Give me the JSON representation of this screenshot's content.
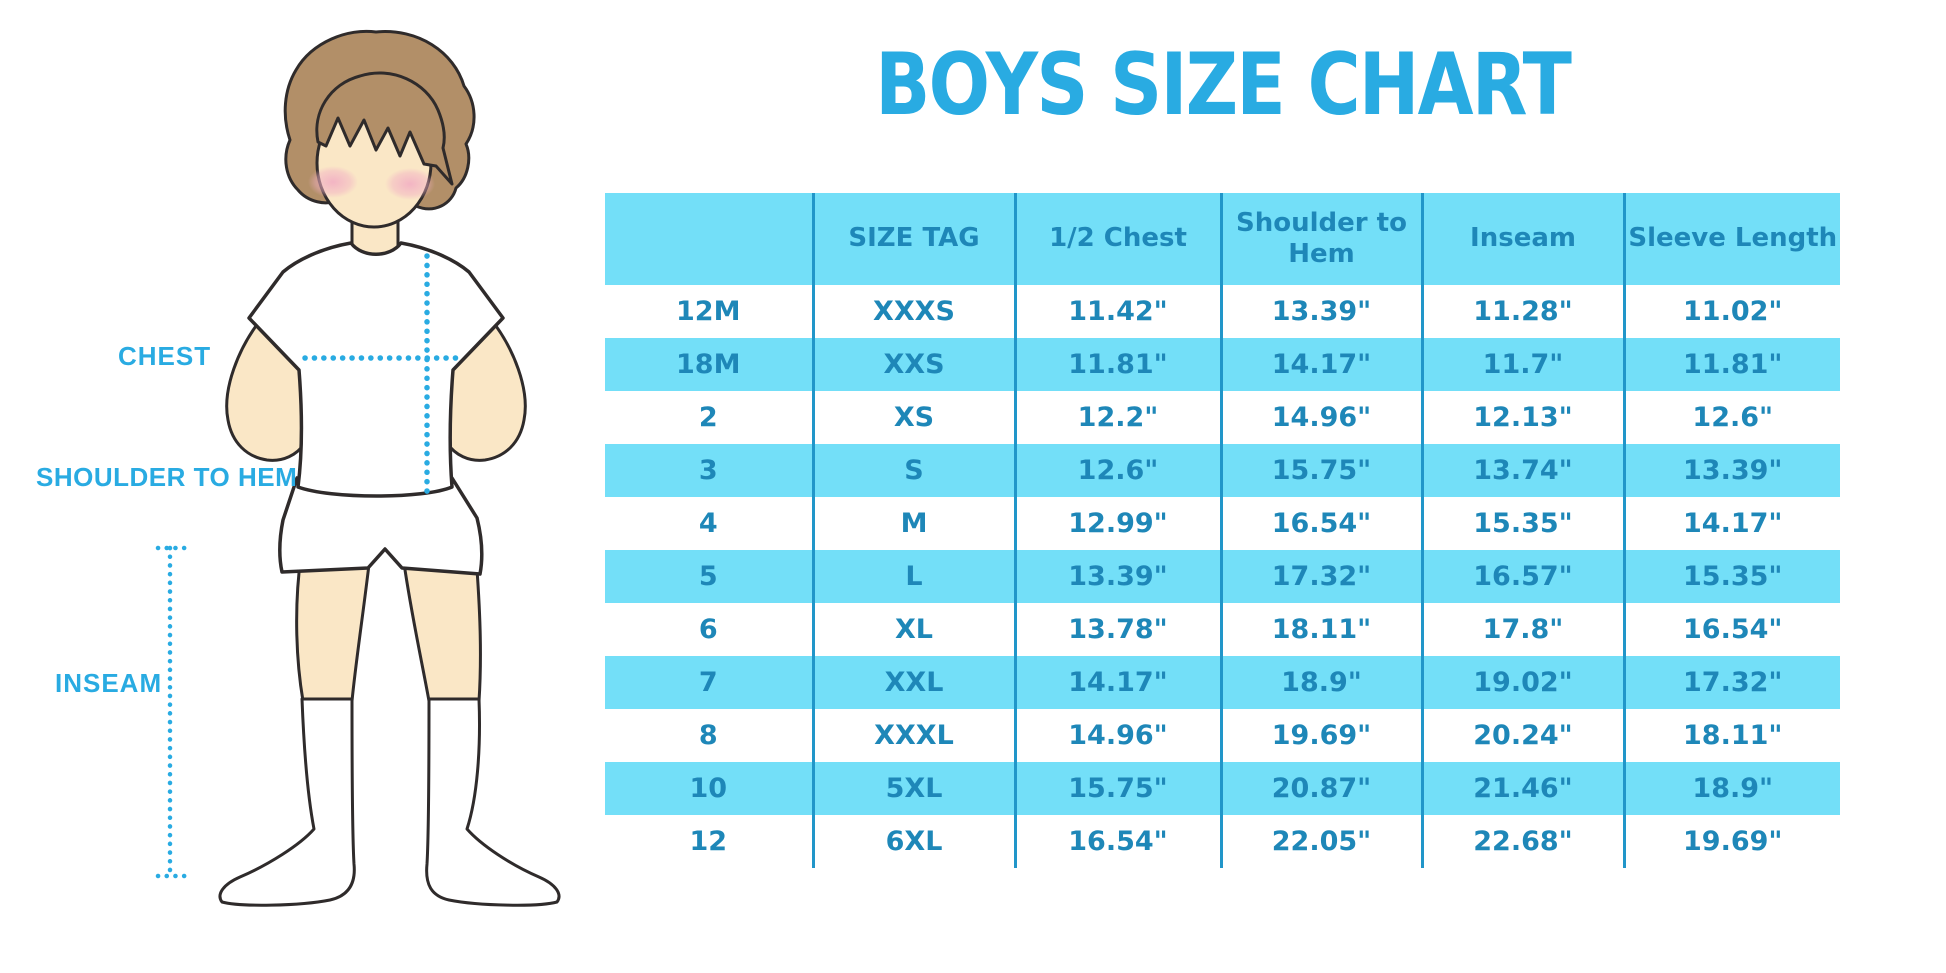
{
  "title": "BOYS SIZE CHART",
  "labels": {
    "chest": "CHEST",
    "shoulder_to_hem": "SHOULDER TO HEM",
    "inseam": "INSEAM"
  },
  "chart_data": {
    "type": "table",
    "title": "BOYS SIZE CHART",
    "columns": [
      "",
      "SIZE TAG",
      "1/2 Chest",
      "Shoulder to Hem",
      "Inseam",
      "Sleeve Length"
    ],
    "rows": [
      [
        "12M",
        "XXXS",
        "11.42\"",
        "13.39\"",
        "11.28\"",
        "11.02\""
      ],
      [
        "18M",
        "XXS",
        "11.81\"",
        "14.17\"",
        "11.7\"",
        "11.81\""
      ],
      [
        "2",
        "XS",
        "12.2\"",
        "14.96\"",
        "12.13\"",
        "12.6\""
      ],
      [
        "3",
        "S",
        "12.6\"",
        "15.75\"",
        "13.74\"",
        "13.39\""
      ],
      [
        "4",
        "M",
        "12.99\"",
        "16.54\"",
        "15.35\"",
        "14.17\""
      ],
      [
        "5",
        "L",
        "13.39\"",
        "17.32\"",
        "16.57\"",
        "15.35\""
      ],
      [
        "6",
        "XL",
        "13.78\"",
        "18.11\"",
        "17.8\"",
        "16.54\""
      ],
      [
        "7",
        "XXL",
        "14.17\"",
        "18.9\"",
        "19.02\"",
        "17.32\""
      ],
      [
        "8",
        "XXXL",
        "14.96\"",
        "19.69\"",
        "20.24\"",
        "18.11\""
      ],
      [
        "10",
        "5XL",
        "15.75\"",
        "20.87\"",
        "21.46\"",
        "18.9\""
      ],
      [
        "12",
        "6XL",
        "16.54\"",
        "22.05\"",
        "22.68\"",
        "19.69\""
      ]
    ],
    "units": "inches",
    "layout": {
      "row_striping": "header and every second data row light blue, others white",
      "grid": "vertical column dividers only, no outer border",
      "legend_position": "none"
    }
  },
  "colors": {
    "accent_blue": "#29ABE2",
    "stripe_blue": "#73DFF8",
    "table_text_blue": "#1E87B8",
    "divider_blue": "#2196C9",
    "skin": "#FAE7C6",
    "hair": "#B28F68",
    "blush": "#F2AFC4",
    "outline": "#2F2B2B"
  },
  "illustration": {
    "figure": "front-facing boy in white t-shirt, white shorts and white knee socks, hands behind back",
    "measure_marks": [
      "chest-dotted-line",
      "shoulder-to-hem-dotted-line",
      "inseam-dotted-line"
    ]
  }
}
